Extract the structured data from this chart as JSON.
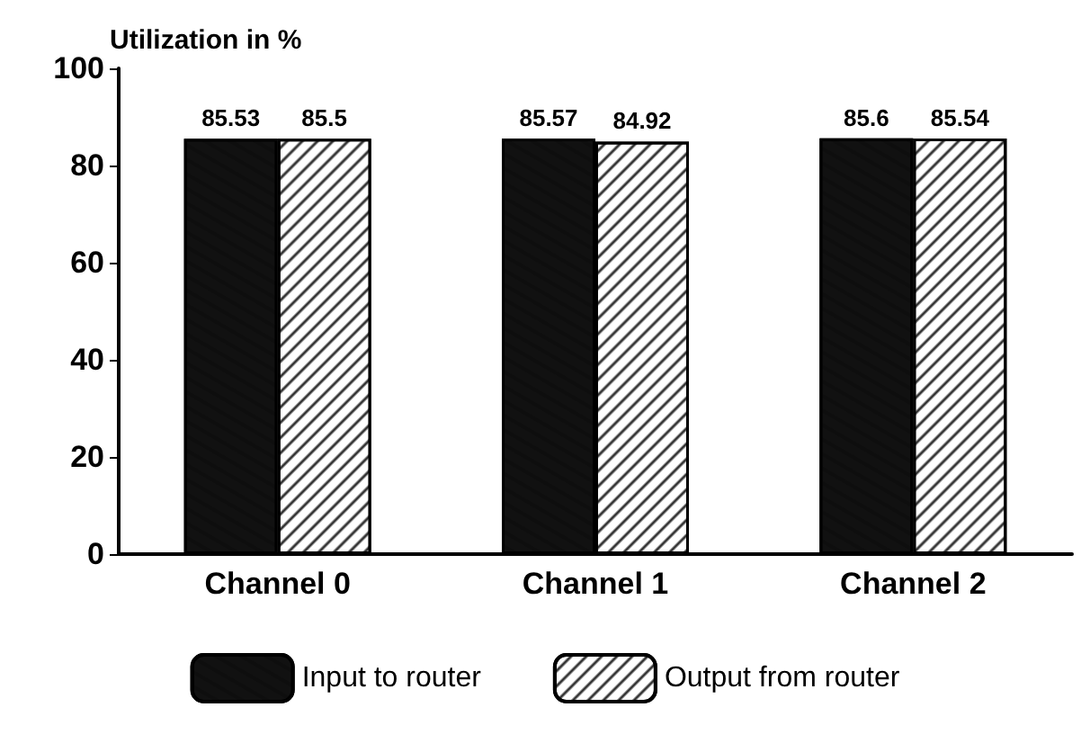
{
  "chart_data": {
    "type": "bar",
    "ylabel": "Utilization in %",
    "categories": [
      "Channel 0",
      "Channel 1",
      "Channel 2"
    ],
    "series": [
      {
        "name": "Input to router",
        "color": "#111111",
        "values": [
          85.53,
          85.57,
          85.6
        ]
      },
      {
        "name": "Output from router",
        "color": "#ffffff",
        "values": [
          85.5,
          84.92,
          85.54
        ]
      }
    ],
    "ylim": [
      0,
      100
    ],
    "yticks": [
      0,
      20,
      40,
      60,
      80,
      100
    ],
    "data_labels": true,
    "legend": "bottom",
    "grid": false
  }
}
